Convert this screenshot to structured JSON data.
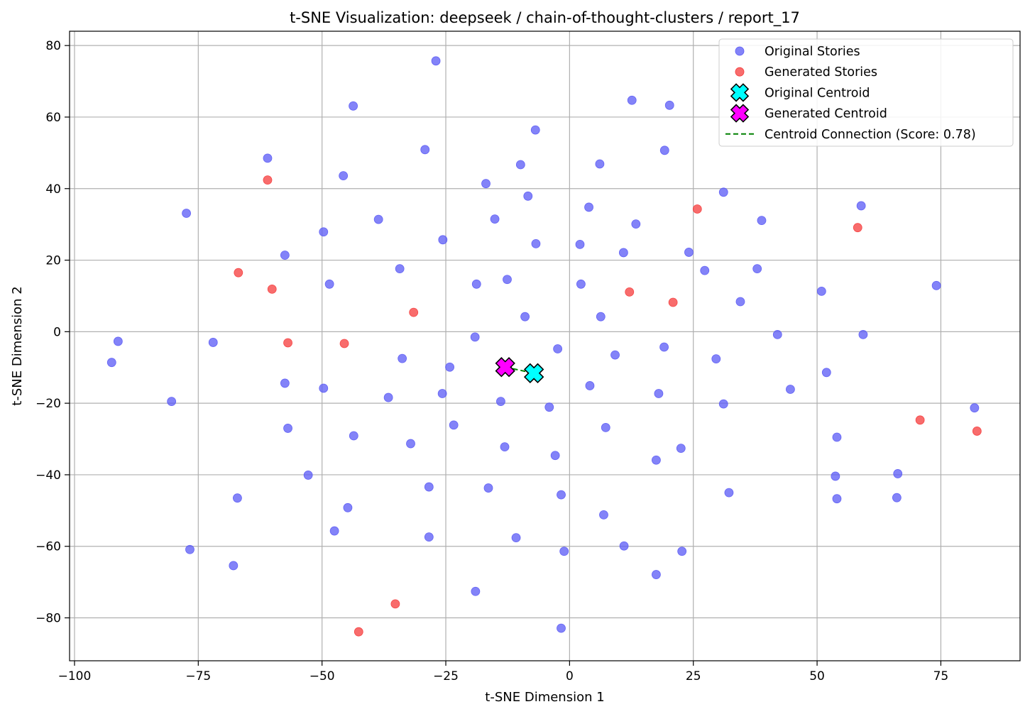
{
  "chart_data": {
    "type": "scatter",
    "title": "t-SNE Visualization: deepseek / chain-of-thought-clusters / report_17",
    "xlabel": "t-SNE Dimension 1",
    "ylabel": "t-SNE Dimension 2",
    "xlim": [
      -101,
      91
    ],
    "ylim": [
      -92,
      84
    ],
    "xticks": [
      -100,
      -75,
      -50,
      -25,
      0,
      25,
      50,
      75
    ],
    "yticks": [
      -80,
      -60,
      -40,
      -20,
      0,
      20,
      40,
      60,
      80
    ],
    "xtick_labels": [
      "−100",
      "−75",
      "−50",
      "−25",
      "0",
      "25",
      "50",
      "75"
    ],
    "ytick_labels": [
      "−80",
      "−60",
      "−40",
      "−20",
      "0",
      "20",
      "40",
      "60",
      "80"
    ],
    "grid": true,
    "legend_position": "top-right",
    "colors": {
      "original": "#5a5af5",
      "generated": "#f53b3b",
      "original_centroid": "#00ffff",
      "generated_centroid": "#ff00ff",
      "connection": "#008000"
    },
    "series": [
      {
        "name": "Original Stories",
        "points": [
          [
            -27.0,
            75.7
          ],
          [
            -43.7,
            63.1
          ],
          [
            12.6,
            64.7
          ],
          [
            20.2,
            63.3
          ],
          [
            -6.9,
            56.4
          ],
          [
            -29.2,
            50.9
          ],
          [
            19.2,
            50.7
          ],
          [
            -61.0,
            48.5
          ],
          [
            -9.9,
            46.7
          ],
          [
            6.1,
            46.9
          ],
          [
            -45.7,
            43.6
          ],
          [
            -16.9,
            41.4
          ],
          [
            -8.4,
            37.9
          ],
          [
            31.1,
            39.0
          ],
          [
            -77.4,
            33.1
          ],
          [
            3.9,
            34.8
          ],
          [
            58.9,
            35.2
          ],
          [
            -38.6,
            31.4
          ],
          [
            -15.1,
            31.5
          ],
          [
            13.4,
            30.1
          ],
          [
            38.8,
            31.1
          ],
          [
            -49.7,
            27.9
          ],
          [
            -25.6,
            25.7
          ],
          [
            -6.8,
            24.6
          ],
          [
            2.1,
            24.4
          ],
          [
            10.9,
            22.1
          ],
          [
            24.1,
            22.2
          ],
          [
            -57.5,
            21.4
          ],
          [
            -34.3,
            17.6
          ],
          [
            27.3,
            17.1
          ],
          [
            37.9,
            17.6
          ],
          [
            -12.6,
            14.6
          ],
          [
            -48.5,
            13.3
          ],
          [
            -18.8,
            13.3
          ],
          [
            2.3,
            13.3
          ],
          [
            74.1,
            12.9
          ],
          [
            50.9,
            11.3
          ],
          [
            34.5,
            8.4
          ],
          [
            -9.0,
            4.2
          ],
          [
            6.3,
            4.2
          ],
          [
            42.0,
            -0.8
          ],
          [
            59.3,
            -0.8
          ],
          [
            -91.2,
            -2.7
          ],
          [
            -72.0,
            -3.0
          ],
          [
            -19.1,
            -1.5
          ],
          [
            -2.4,
            -4.8
          ],
          [
            19.1,
            -4.3
          ],
          [
            -92.5,
            -8.6
          ],
          [
            -33.8,
            -7.5
          ],
          [
            9.2,
            -6.5
          ],
          [
            29.6,
            -7.6
          ],
          [
            -24.2,
            -9.9
          ],
          [
            51.9,
            -11.4
          ],
          [
            -57.5,
            -14.4
          ],
          [
            -49.7,
            -15.8
          ],
          [
            4.1,
            -15.1
          ],
          [
            44.6,
            -16.1
          ],
          [
            -25.7,
            -17.3
          ],
          [
            18.0,
            -17.3
          ],
          [
            -80.4,
            -19.5
          ],
          [
            -36.6,
            -18.4
          ],
          [
            -13.9,
            -19.5
          ],
          [
            -4.1,
            -21.1
          ],
          [
            31.1,
            -20.2
          ],
          [
            81.8,
            -21.3
          ],
          [
            -56.9,
            -27.0
          ],
          [
            -23.4,
            -26.1
          ],
          [
            7.3,
            -26.8
          ],
          [
            -43.6,
            -29.1
          ],
          [
            54.0,
            -29.5
          ],
          [
            -32.1,
            -31.3
          ],
          [
            -13.1,
            -32.2
          ],
          [
            22.5,
            -32.6
          ],
          [
            -2.9,
            -34.6
          ],
          [
            17.5,
            -35.9
          ],
          [
            -52.8,
            -40.1
          ],
          [
            53.7,
            -40.4
          ],
          [
            66.3,
            -39.7
          ],
          [
            -28.4,
            -43.4
          ],
          [
            -16.4,
            -43.7
          ],
          [
            32.2,
            -45.0
          ],
          [
            -67.1,
            -46.5
          ],
          [
            -1.7,
            -45.6
          ],
          [
            54.0,
            -46.7
          ],
          [
            66.1,
            -46.4
          ],
          [
            -44.8,
            -49.2
          ],
          [
            6.9,
            -51.2
          ],
          [
            -47.5,
            -55.7
          ],
          [
            -28.4,
            -57.4
          ],
          [
            -10.8,
            -57.6
          ],
          [
            11.0,
            -59.9
          ],
          [
            -76.7,
            -60.9
          ],
          [
            -1.1,
            -61.4
          ],
          [
            22.7,
            -61.4
          ],
          [
            -67.9,
            -65.4
          ],
          [
            17.5,
            -67.9
          ],
          [
            -19.0,
            -72.6
          ],
          [
            -1.7,
            -82.9
          ]
        ]
      },
      {
        "name": "Generated Stories",
        "points": [
          [
            -61.0,
            42.4
          ],
          [
            25.8,
            34.3
          ],
          [
            58.2,
            29.1
          ],
          [
            -66.9,
            16.5
          ],
          [
            -60.1,
            11.9
          ],
          [
            12.1,
            11.1
          ],
          [
            20.9,
            8.2
          ],
          [
            -31.5,
            5.4
          ],
          [
            -56.9,
            -3.1
          ],
          [
            -45.5,
            -3.3
          ],
          [
            70.8,
            -24.7
          ],
          [
            82.3,
            -27.8
          ],
          [
            -35.2,
            -76.1
          ],
          [
            -42.6,
            -83.9
          ]
        ]
      }
    ],
    "centroids": [
      {
        "name": "Original Centroid",
        "x": -7.2,
        "y": -11.6
      },
      {
        "name": "Generated Centroid",
        "x": -13.0,
        "y": -9.9
      }
    ],
    "connection": {
      "name": "Centroid Connection (Score: 0.78)",
      "from": [
        -13.0,
        -9.9
      ],
      "to": [
        -7.2,
        -11.6
      ],
      "score": 0.78
    }
  }
}
